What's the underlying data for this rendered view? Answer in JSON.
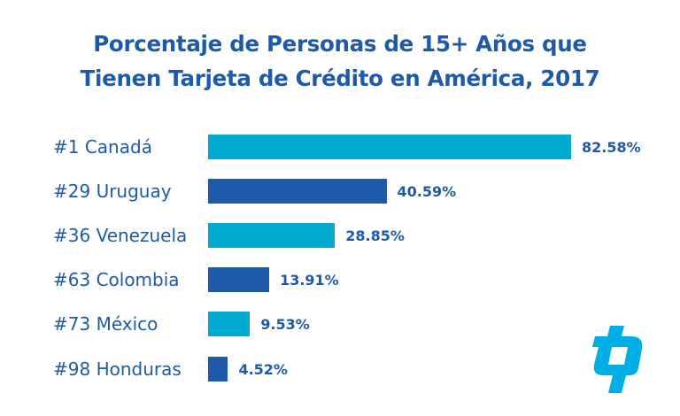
{
  "chart_data": {
    "type": "bar",
    "orientation": "horizontal",
    "title": "Porcentaje de Personas de 15+ Años que Tienen Tarjeta de Crédito en América, 2017",
    "title_lines": [
      "Porcentaje de Personas de 15+ Años que",
      "Tienen Tarjeta de Crédito en América, 2017"
    ],
    "categories": [
      "#1 Canadá",
      "#29 Uruguay",
      "#36 Venezuela",
      "#63 Colombia",
      "#73 México",
      "#98 Honduras"
    ],
    "values": [
      82.58,
      40.59,
      28.85,
      13.91,
      9.53,
      4.52
    ],
    "value_labels": [
      "82.58%",
      "40.59%",
      "28.85%",
      "13.91%",
      "9.53%",
      "4.52%"
    ],
    "xlim": [
      0,
      100
    ],
    "grid": false,
    "legend": "none",
    "bar_colors": [
      "#00aad0",
      "#1f5aa8",
      "#00aad0",
      "#1f5aa8",
      "#00aad0",
      "#1f5aa8"
    ]
  },
  "logo": {
    "name": "brand-logo",
    "color": "#00aee6"
  }
}
